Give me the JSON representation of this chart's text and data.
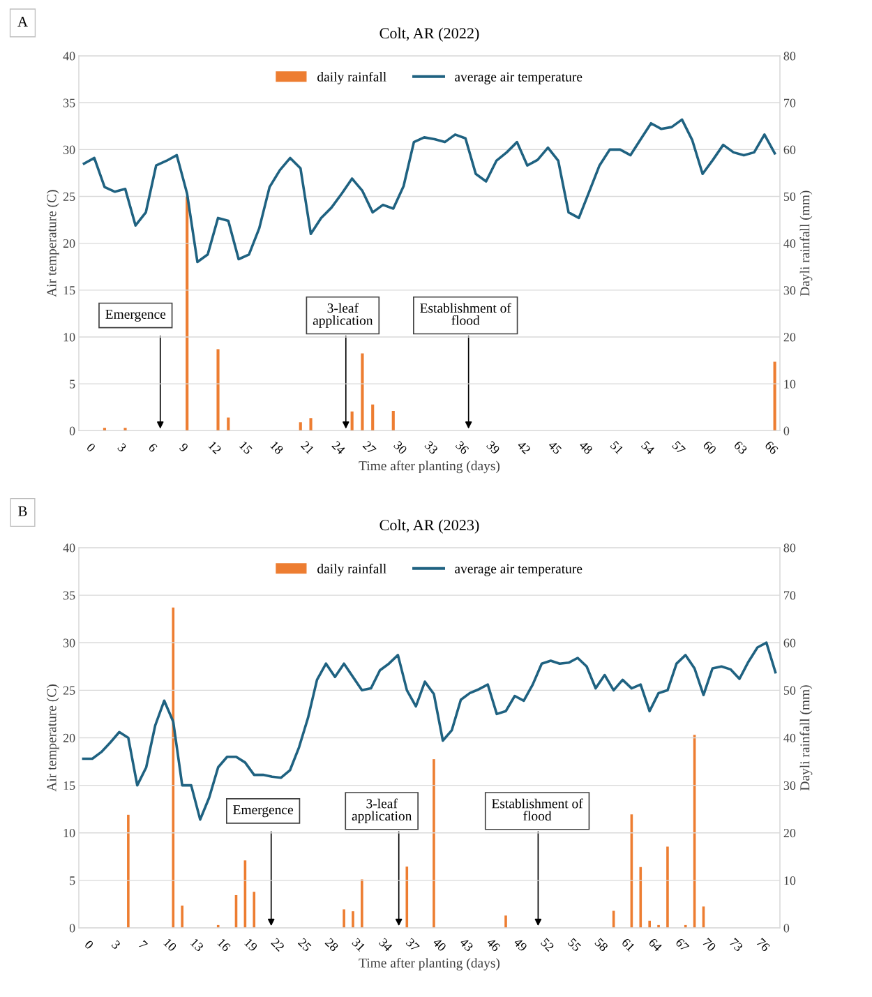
{
  "chart_data": [
    {
      "type": "line",
      "title": "Colt, AR (2022)",
      "xlabel": "Time after planting (days)",
      "ylabel": "Air temperature (C)",
      "y2label": "Dayli rainfall (mm)",
      "categories": [
        null,
        "0",
        null,
        null,
        "3",
        null,
        null,
        "6",
        null,
        null,
        "9",
        null,
        null,
        "12",
        null,
        null,
        "15",
        null,
        null,
        "18",
        null,
        null,
        "21",
        null,
        null,
        "24",
        null,
        null,
        "27",
        null,
        null,
        "30",
        null,
        null,
        "33",
        null,
        null,
        "36",
        null,
        null,
        "39",
        null,
        null,
        "42",
        null,
        null,
        "45",
        null,
        null,
        "48",
        null,
        null,
        "51",
        null,
        null,
        "54",
        null,
        null,
        "57",
        null,
        null,
        "60",
        null,
        null,
        "63",
        null,
        null,
        "66"
      ],
      "series": [
        {
          "name": "daily rainfall",
          "type": "bar",
          "axis": "y2",
          "color": "#ed7d31",
          "values": [
            0,
            0,
            0.6,
            0,
            0.6,
            0,
            0,
            0,
            0,
            0,
            50,
            0,
            0,
            17.4,
            2.8,
            0,
            0,
            0,
            0,
            0,
            0,
            1.8,
            2.7,
            0,
            0,
            0,
            4.1,
            16.5,
            5.6,
            0,
            4.2,
            0,
            0,
            0,
            0,
            0,
            0,
            0,
            0,
            0,
            0,
            0,
            0,
            0,
            0,
            0,
            0,
            0,
            0,
            0,
            0,
            0,
            0,
            0,
            0,
            0,
            0,
            0,
            0,
            0,
            0,
            0,
            0,
            0,
            0,
            0,
            0,
            14.7
          ]
        },
        {
          "name": "average air temperature",
          "color": "#1f6281",
          "values": [
            28.5,
            29.1,
            26.0,
            25.5,
            25.8,
            21.9,
            23.3,
            28.3,
            28.8,
            29.4,
            25.3,
            18.0,
            18.8,
            22.7,
            22.4,
            18.3,
            18.8,
            21.6,
            26.0,
            27.8,
            29.1,
            28.0,
            21.0,
            22.7,
            23.8,
            25.3,
            26.9,
            25.6,
            23.3,
            24.1,
            23.7,
            26.1,
            30.8,
            31.3,
            31.1,
            30.8,
            31.6,
            31.2,
            27.4,
            26.6,
            28.8,
            29.7,
            30.8,
            28.3,
            28.9,
            30.2,
            28.8,
            23.3,
            22.7,
            25.5,
            28.3,
            30.0,
            30.0,
            29.4,
            31.1,
            32.8,
            32.2,
            32.4,
            33.2,
            31.0,
            27.4,
            28.9,
            30.5,
            29.7,
            29.4,
            29.7,
            31.6,
            29.6
          ]
        }
      ],
      "ylim": [
        0,
        40
      ],
      "yticks": [
        0,
        5,
        10,
        15,
        20,
        25,
        30,
        35,
        40
      ],
      "y2lim": [
        0,
        80
      ],
      "y2ticks": [
        0,
        10,
        20,
        30,
        40,
        50,
        60,
        70,
        80
      ],
      "grid": "y",
      "legend": "top",
      "marker": "none",
      "line_style": "solid",
      "annotations": [
        "A",
        "Emergence",
        "3-leaf\napplication",
        "Establishment of\nflood"
      ]
    },
    {
      "type": "line",
      "title": "Colt, AR (2023)",
      "xlabel": "Time after planting (days)",
      "ylabel": "Air temperature (C)",
      "y2label": "Dayli rainfall (mm)",
      "categories": [
        null,
        "0",
        null,
        null,
        "3",
        null,
        null,
        "7",
        null,
        null,
        "10",
        null,
        null,
        "13",
        null,
        null,
        "16",
        null,
        null,
        "19",
        null,
        null,
        "22",
        null,
        null,
        "25",
        null,
        null,
        "28",
        null,
        null,
        "31",
        null,
        null,
        "34",
        null,
        null,
        "37",
        null,
        null,
        "40",
        null,
        null,
        "43",
        null,
        null,
        "46",
        null,
        null,
        "49",
        null,
        null,
        "52",
        null,
        null,
        "55",
        null,
        null,
        "58",
        null,
        null,
        "61",
        null,
        null,
        "64",
        null,
        null,
        "67",
        null,
        null,
        "70",
        null,
        null,
        "73",
        null,
        null,
        "76",
        null
      ],
      "series": [
        {
          "name": "daily rainfall",
          "type": "bar",
          "axis": "y2",
          "color": "#ed7d31",
          "values": [
            0,
            0,
            0,
            0,
            0,
            23.8,
            0,
            0,
            0,
            0,
            67.4,
            4.7,
            0,
            0,
            0,
            0.6,
            0,
            6.9,
            14.2,
            7.6,
            0,
            0,
            0,
            0,
            0,
            0,
            0,
            0,
            0,
            3.9,
            3.5,
            10.2,
            0,
            0,
            0,
            0,
            12.9,
            0,
            0,
            35.5,
            0,
            0,
            0,
            0,
            0,
            0,
            0,
            2.6,
            0,
            0,
            0,
            0,
            0,
            0,
            0,
            0,
            0,
            0,
            0,
            3.6,
            0,
            23.9,
            12.8,
            1.5,
            0.6,
            17.1,
            0,
            0.6,
            40.6,
            4.5,
            0,
            0,
            0,
            0,
            0,
            0,
            0,
            0
          ]
        },
        {
          "name": "average air temperature",
          "color": "#1f6281",
          "values": [
            17.8,
            17.8,
            18.5,
            19.5,
            20.6,
            20.0,
            15.0,
            16.9,
            21.3,
            23.9,
            21.7,
            15.0,
            15.0,
            11.4,
            13.7,
            16.9,
            18.0,
            18.0,
            17.4,
            16.1,
            16.1,
            15.9,
            15.8,
            16.6,
            19.0,
            22.1,
            26.1,
            27.8,
            26.4,
            27.8,
            26.4,
            25.0,
            25.2,
            27.1,
            27.8,
            28.7,
            25.0,
            23.3,
            25.9,
            24.6,
            19.7,
            20.8,
            24.0,
            24.7,
            25.1,
            25.6,
            22.5,
            22.8,
            24.4,
            23.9,
            25.6,
            27.8,
            28.1,
            27.8,
            27.9,
            28.4,
            27.5,
            25.2,
            26.6,
            25.0,
            26.1,
            25.2,
            25.6,
            22.8,
            24.7,
            25.0,
            27.8,
            28.7,
            27.3,
            24.5,
            27.3,
            27.5,
            27.2,
            26.2,
            28.0,
            29.5,
            30.0,
            26.9
          ]
        }
      ],
      "ylim": [
        0,
        40
      ],
      "yticks": [
        0,
        5,
        10,
        15,
        20,
        25,
        30,
        35,
        40
      ],
      "y2lim": [
        0,
        80
      ],
      "y2ticks": [
        0,
        10,
        20,
        30,
        40,
        50,
        60,
        70,
        80
      ],
      "grid": "y",
      "legend": "top",
      "marker": "none",
      "line_style": "solid",
      "annotations": [
        "B",
        "Emergence",
        "3-leaf\napplication",
        "Establishment of\nflood"
      ]
    }
  ]
}
